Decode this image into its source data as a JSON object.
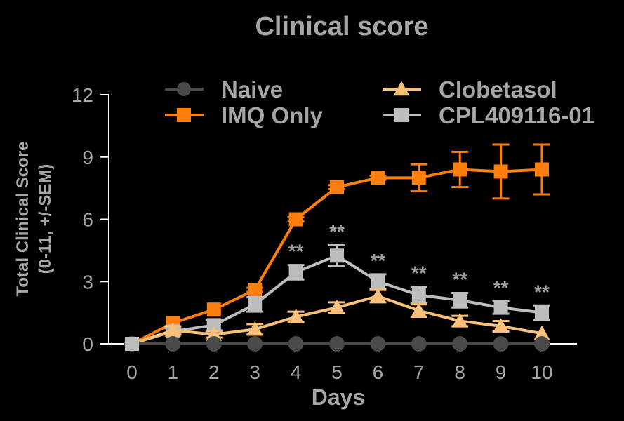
{
  "chart_data": {
    "type": "line",
    "title": "Clinical score",
    "xlabel": "Days",
    "ylabel_line1": "Total Clinical Score",
    "ylabel_line2": "(0-11, +/-SEM)",
    "xlim": [
      0,
      10
    ],
    "ylim": [
      0,
      12
    ],
    "x": [
      0,
      1,
      2,
      3,
      4,
      5,
      6,
      7,
      8,
      9,
      10
    ],
    "x_ticks": [
      "0",
      "1",
      "2",
      "3",
      "4",
      "5",
      "6",
      "7",
      "8",
      "9",
      "10"
    ],
    "y_ticks": [
      "0",
      "3",
      "6",
      "9",
      "12"
    ],
    "grid": false,
    "legend_position": "top",
    "series": [
      {
        "name": "Naive",
        "color": "#4a4a4a",
        "marker": "circle",
        "values": [
          0,
          0,
          0,
          0,
          0,
          0,
          0,
          0,
          0,
          0,
          0
        ],
        "sem": [
          0,
          0,
          0,
          0,
          0,
          0,
          0,
          0,
          0,
          0,
          0
        ]
      },
      {
        "name": "IMQ Only",
        "color": "#ff7f0e",
        "marker": "square",
        "values": [
          0,
          1.0,
          1.65,
          2.6,
          6.0,
          7.55,
          8.0,
          8.0,
          8.4,
          8.3,
          8.4
        ],
        "sem": [
          0,
          0,
          0,
          0.1,
          0.1,
          0.1,
          0.1,
          0.65,
          0.85,
          1.3,
          1.2
        ]
      },
      {
        "name": "Clobetasol",
        "color": "#f9c07a",
        "marker": "triangle",
        "values": [
          0,
          0.65,
          0.45,
          0.7,
          1.3,
          1.75,
          2.3,
          1.6,
          1.1,
          0.85,
          0.5
        ],
        "sem": [
          0,
          0.2,
          0.15,
          0.25,
          0.25,
          0.25,
          0.3,
          0.3,
          0.25,
          0.25,
          0
        ]
      },
      {
        "name": "CPL409116-01",
        "color": "#bdbdbd",
        "marker": "square",
        "values": [
          0,
          0.6,
          0.9,
          1.9,
          3.45,
          4.25,
          3.0,
          2.35,
          2.1,
          1.75,
          1.5
        ],
        "sem": [
          0,
          0.15,
          0.25,
          0.35,
          0.35,
          0.5,
          0.35,
          0.4,
          0.35,
          0.3,
          0.35
        ]
      }
    ],
    "annotations": [
      {
        "x": 4,
        "text": "**"
      },
      {
        "x": 5,
        "text": "**"
      },
      {
        "x": 6,
        "text": "**"
      },
      {
        "x": 7,
        "text": "**"
      },
      {
        "x": 8,
        "text": "**"
      },
      {
        "x": 9,
        "text": "**"
      },
      {
        "x": 10,
        "text": "**"
      }
    ],
    "annotation_color": "#9e9e9e",
    "axis_color": "#ffffff",
    "text_color": "#a6a6a6"
  }
}
